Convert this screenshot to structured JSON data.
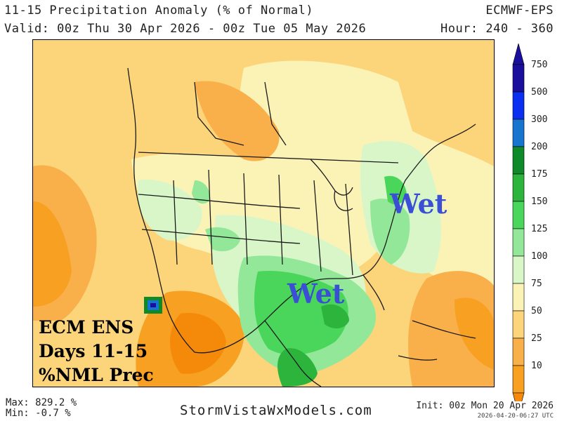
{
  "header": {
    "title": "11-15 Precipitation Anomaly (% of Normal)",
    "valid": "Valid: 00z Thu 30 Apr 2026 - 00z Tue 05 May 2026",
    "model": "ECMWF-EPS",
    "hour": "Hour: 240 - 360"
  },
  "map": {
    "annotations": {
      "wet_east": "Wet",
      "wet_south": "Wet"
    },
    "box_lines": [
      "ECM ENS",
      "Days 11-15",
      "%NML Prec"
    ],
    "annotation_color": "#3a4fd6"
  },
  "colorbar": {
    "levels": [
      {
        "label": "750",
        "color": "#1a0f9c"
      },
      {
        "label": "500",
        "color": "#0a2ff0"
      },
      {
        "label": "300",
        "color": "#1774cf"
      },
      {
        "label": "200",
        "color": "#0f8a2a"
      },
      {
        "label": "175",
        "color": "#2cb43c"
      },
      {
        "label": "150",
        "color": "#49d65a"
      },
      {
        "label": "125",
        "color": "#92e898"
      },
      {
        "label": "100",
        "color": "#d8f6c8"
      },
      {
        "label": "75",
        "color": "#fbf3b6"
      },
      {
        "label": "50",
        "color": "#fcd57a"
      },
      {
        "label": "25",
        "color": "#f9b04a"
      },
      {
        "label": "10",
        "color": "#f7a021"
      }
    ],
    "bottom_color": "#f58a0a"
  },
  "footer": {
    "max": "Max: 829.2 %",
    "min": "Min: -0.7 %",
    "site": "StormVistaWxModels.com",
    "init": "Init: 00z Mon 20 Apr 2026",
    "generated": "2026-04-20-06:27 UTC"
  }
}
